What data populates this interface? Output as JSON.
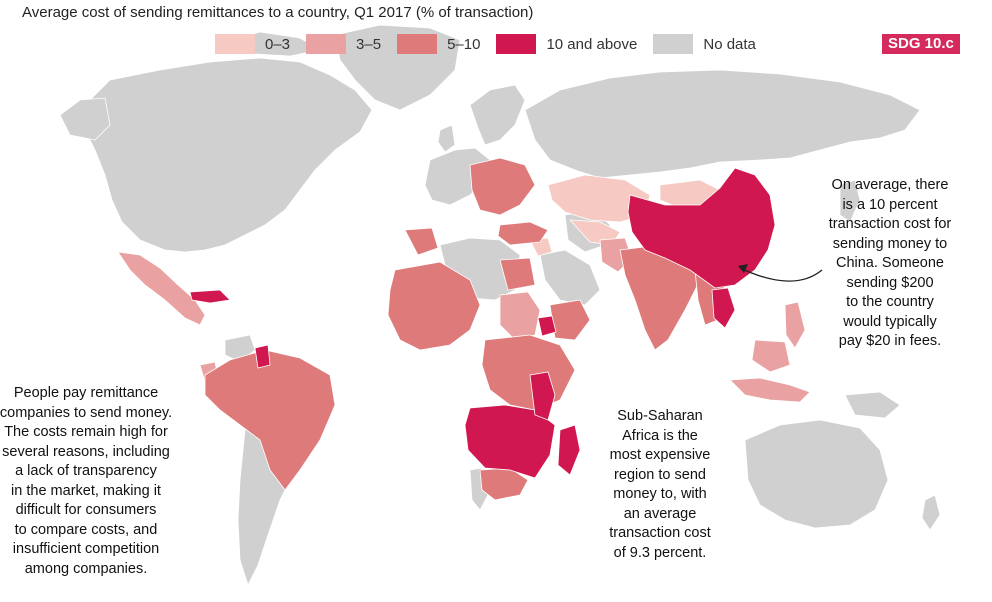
{
  "title": "Average cost of sending remittances to a country, Q1 2017 (% of transaction)",
  "legend": [
    {
      "label": "0–3",
      "color": "#f7c9c3"
    },
    {
      "label": "3–5",
      "color": "#eaa1a1"
    },
    {
      "label": "5–10",
      "color": "#df7a7a"
    },
    {
      "label": "10 and above",
      "color": "#d1174f"
    },
    {
      "label": "No data",
      "color": "#d0d0d0"
    }
  ],
  "badge": "SDG 10.c",
  "colors": {
    "nodata": "#d0d0d0",
    "c0_3": "#f7c9c3",
    "c3_5": "#eaa1a1",
    "c5_10": "#df7a7a",
    "c10": "#d1174f",
    "ocean": "#ffffff",
    "border": "#ffffff"
  },
  "annotations": {
    "left": "People pay remittance\ncompanies to send money.\nThe costs remain high for\nseveral reasons, including\na lack of transparency\nin the market, making it\ndifficult for consumers\nto compare costs, and\ninsufficient competition\namong companies.",
    "ssa": "Sub-Saharan\nAfrica is the\nmost expensive\nregion to send\nmoney to, with\nan average\ntransaction cost\nof 9.3 percent.",
    "china": "On average, there\nis a 10 percent\ntransaction cost for\nsending money to\nChina. Someone\nsending $200\nto the country\nwould typically\npay $20 in fees."
  }
}
